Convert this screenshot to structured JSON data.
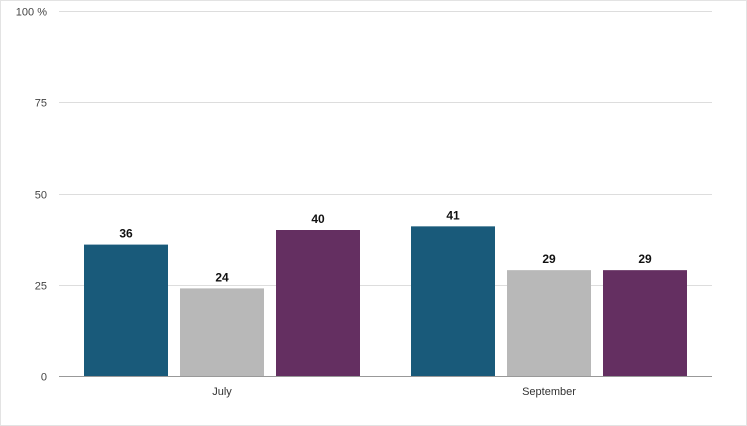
{
  "chart_data": {
    "type": "bar",
    "categories": [
      "July",
      "September"
    ],
    "series": [
      {
        "values": [
          36,
          41
        ],
        "color": "#195a7a"
      },
      {
        "values": [
          24,
          29
        ],
        "color": "#b8b8b8"
      },
      {
        "values": [
          40,
          29
        ],
        "color": "#642f61"
      }
    ],
    "y_ticks": [
      "0",
      "25",
      "50",
      "75",
      "100 %"
    ],
    "ylim": [
      0,
      100
    ],
    "grid": true,
    "data_labels": true,
    "title": "",
    "xlabel": "",
    "ylabel": ""
  }
}
